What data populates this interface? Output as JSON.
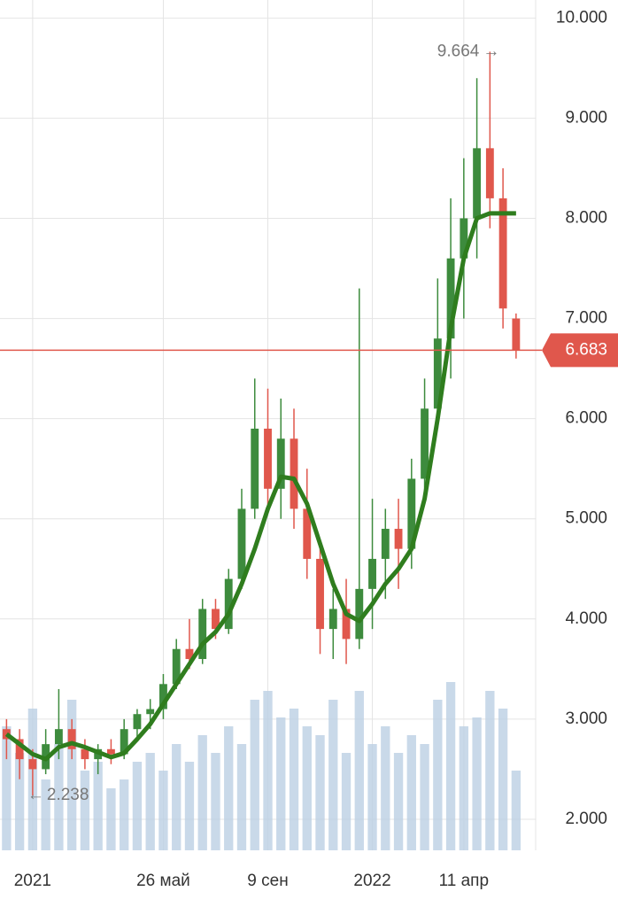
{
  "chart_data": {
    "type": "candlestick",
    "categories": [
      null,
      null,
      "2021",
      null,
      null,
      null,
      null,
      null,
      null,
      null,
      null,
      null,
      "26 май",
      null,
      null,
      null,
      null,
      null,
      null,
      null,
      "9 сен",
      null,
      null,
      null,
      null,
      null,
      null,
      null,
      "2022",
      null,
      null,
      null,
      null,
      null,
      null,
      "11 апр",
      null,
      null,
      null,
      null
    ],
    "open": [
      2.9,
      2.8,
      2.6,
      2.5,
      2.75,
      2.9,
      2.7,
      2.6,
      2.7,
      2.65,
      2.9,
      3.05,
      3.1,
      3.35,
      3.7,
      3.6,
      4.1,
      3.9,
      4.4,
      5.1,
      5.9,
      5.3,
      5.8,
      5.1,
      4.6,
      3.9,
      4.1,
      3.8,
      4.3,
      4.6,
      4.9,
      4.7,
      5.4,
      6.1,
      6.8,
      7.6,
      8.0,
      8.7,
      8.2,
      7.0
    ],
    "high": [
      3.0,
      2.9,
      2.7,
      2.9,
      3.3,
      3.0,
      2.8,
      2.75,
      2.8,
      3.0,
      3.1,
      3.2,
      3.45,
      3.8,
      4.0,
      4.2,
      4.2,
      4.5,
      5.3,
      6.4,
      6.3,
      6.2,
      6.1,
      5.5,
      4.7,
      4.3,
      4.4,
      7.3,
      5.2,
      5.1,
      5.2,
      5.6,
      6.4,
      7.4,
      8.2,
      8.6,
      9.4,
      9.664,
      8.5,
      7.05
    ],
    "low": [
      2.6,
      2.4,
      2.238,
      2.45,
      2.6,
      2.6,
      2.5,
      2.45,
      2.55,
      2.6,
      2.8,
      2.9,
      3.0,
      3.3,
      3.5,
      3.55,
      3.8,
      3.85,
      4.3,
      5.0,
      5.1,
      5.0,
      4.9,
      4.4,
      3.65,
      3.6,
      3.55,
      3.7,
      3.9,
      4.2,
      4.3,
      4.5,
      5.2,
      5.9,
      6.4,
      7.0,
      7.6,
      7.9,
      6.9,
      6.6
    ],
    "close": [
      2.8,
      2.6,
      2.5,
      2.75,
      2.9,
      2.7,
      2.6,
      2.7,
      2.65,
      2.9,
      3.05,
      3.1,
      3.35,
      3.7,
      3.6,
      4.1,
      3.9,
      4.4,
      5.1,
      5.9,
      5.3,
      5.8,
      5.1,
      4.6,
      3.9,
      4.1,
      3.8,
      4.3,
      4.6,
      4.9,
      4.7,
      5.4,
      6.1,
      6.8,
      7.6,
      8.0,
      8.7,
      8.2,
      7.1,
      6.683
    ],
    "up_color": "#3d8b3d",
    "down_color": "#e0574c",
    "moving_average": {
      "color": "#2f7d1e",
      "values": [
        2.85,
        2.75,
        2.65,
        2.6,
        2.72,
        2.76,
        2.72,
        2.67,
        2.62,
        2.66,
        2.8,
        2.95,
        3.15,
        3.35,
        3.55,
        3.75,
        3.87,
        4.05,
        4.35,
        4.7,
        5.1,
        5.42,
        5.4,
        5.15,
        4.75,
        4.35,
        4.05,
        3.98,
        4.15,
        4.35,
        4.5,
        4.7,
        5.2,
        6.0,
        6.9,
        7.6,
        8.0,
        8.05,
        8.05,
        8.05
      ]
    },
    "volume": {
      "color": "#bcd0e4",
      "ylim": [
        0,
        100
      ],
      "values": [
        70,
        55,
        80,
        40,
        60,
        85,
        45,
        50,
        35,
        40,
        50,
        55,
        45,
        60,
        50,
        65,
        55,
        70,
        60,
        85,
        90,
        75,
        80,
        70,
        65,
        85,
        55,
        90,
        60,
        70,
        55,
        65,
        60,
        85,
        95,
        70,
        75,
        90,
        80,
        45
      ]
    },
    "ylim": [
      1.69,
      10.18
    ],
    "yticks": [
      {
        "value": 2,
        "label": "2.000"
      },
      {
        "value": 3,
        "label": "3.000"
      },
      {
        "value": 4,
        "label": "4.000"
      },
      {
        "value": 5,
        "label": "5.000"
      },
      {
        "value": 6,
        "label": "6.000"
      },
      {
        "value": 7,
        "label": "7.000"
      },
      {
        "value": 8,
        "label": "8.000"
      },
      {
        "value": 9,
        "label": "9.000"
      },
      {
        "value": 10,
        "label": "10.000"
      }
    ],
    "grid": true,
    "last_price": {
      "value": 6.683,
      "label": "6.683",
      "color": "#e0574c"
    },
    "annotations": [
      {
        "label": "9.664",
        "value": 9.664,
        "index": 37
      },
      {
        "label": "2.238",
        "value": 2.238,
        "index": 2
      }
    ]
  }
}
